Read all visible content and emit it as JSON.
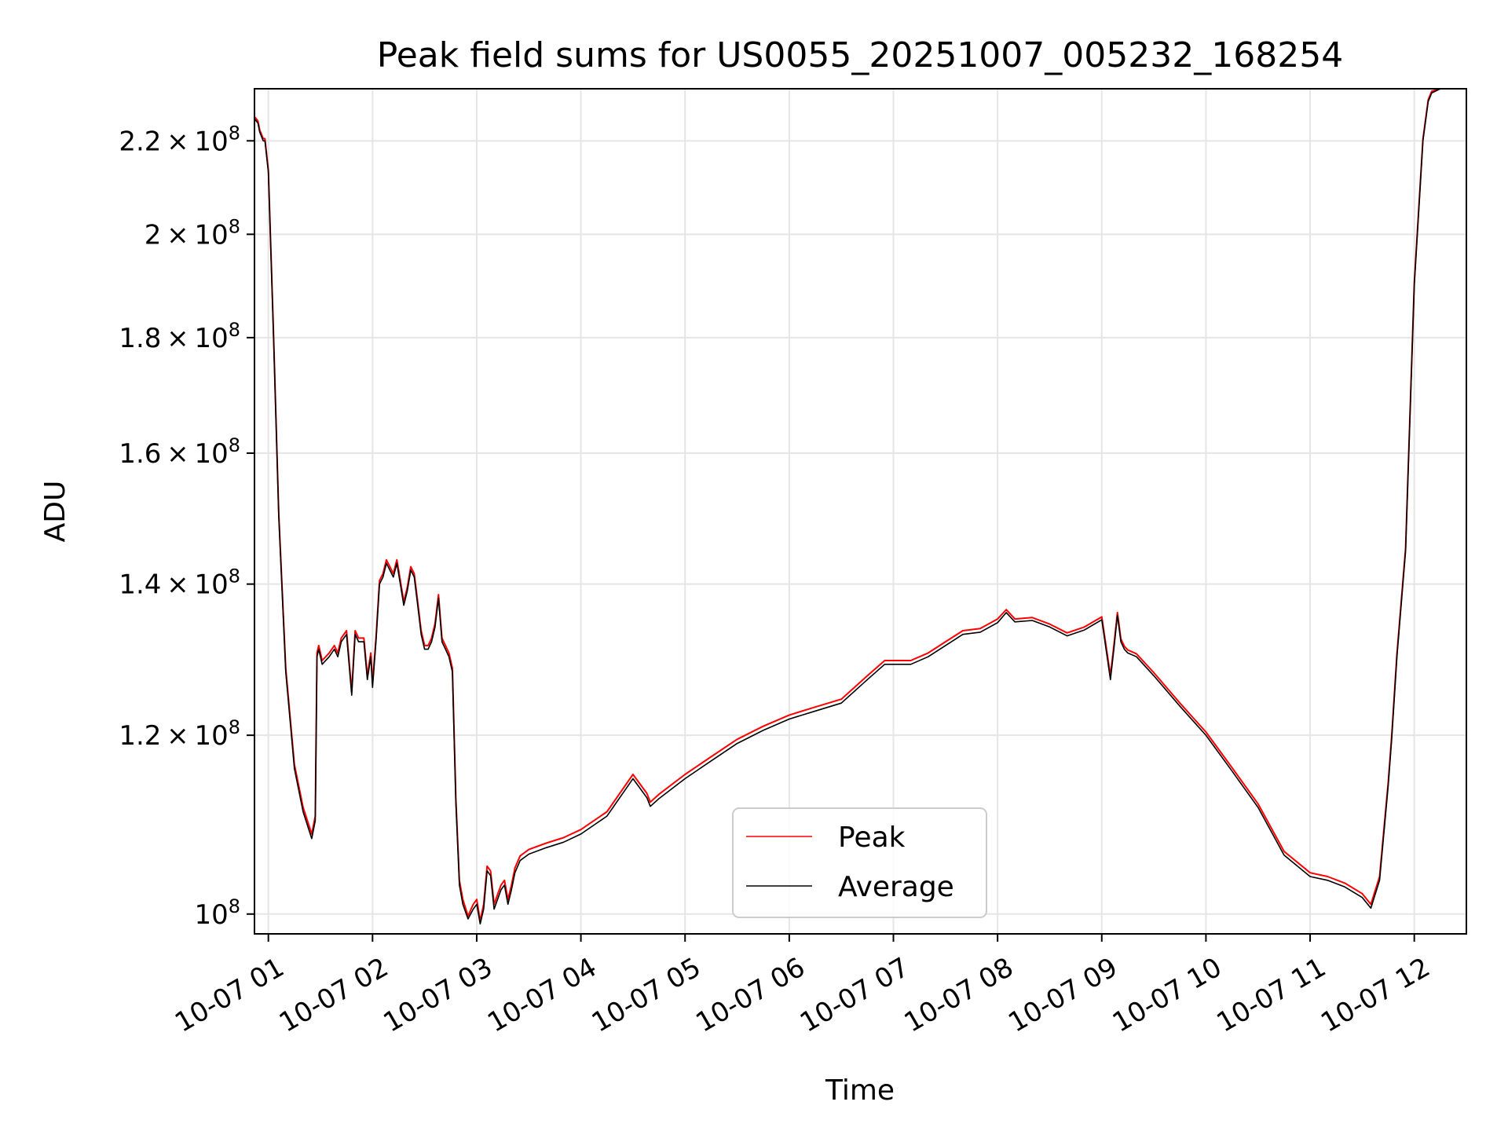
{
  "chart_data": {
    "type": "line",
    "title": "Peak field sums for US0055_20251007_005232_168254",
    "xlabel": "Time",
    "ylabel": "ADU",
    "x_tick_labels": [
      "10-07 01",
      "10-07 02",
      "10-07 03",
      "10-07 04",
      "10-07 05",
      "10-07 06",
      "10-07 07",
      "10-07 08",
      "10-07 09",
      "10-07 10",
      "10-07 11",
      "10-07 12"
    ],
    "x_ticks": [
      "2025-10-07 01:00",
      "2025-10-07 02:00",
      "2025-10-07 03:00",
      "2025-10-07 04:00",
      "2025-10-07 05:00",
      "2025-10-07 06:00",
      "2025-10-07 07:00",
      "2025-10-07 08:00",
      "2025-10-07 09:00",
      "2025-10-07 10:00",
      "2025-10-07 11:00",
      "2025-10-07 12:00"
    ],
    "xlim": [
      "2025-10-07 00:52",
      "2025-10-07 12:30"
    ],
    "y_scale": "log",
    "ylim": [
      98000000,
      232000000
    ],
    "y_ticks": [
      100000000,
      120000000,
      140000000,
      160000000,
      180000000,
      200000000,
      220000000
    ],
    "y_tick_labels": [
      {
        "mantissa": "",
        "base": "10",
        "exp": "8"
      },
      {
        "mantissa": "1.2",
        "base": "10",
        "exp": "8"
      },
      {
        "mantissa": "1.4",
        "base": "10",
        "exp": "8"
      },
      {
        "mantissa": "1.6",
        "base": "10",
        "exp": "8"
      },
      {
        "mantissa": "1.8",
        "base": "10",
        "exp": "8"
      },
      {
        "mantissa": "2",
        "base": "10",
        "exp": "8"
      },
      {
        "mantissa": "2.2",
        "base": "10",
        "exp": "8"
      }
    ],
    "grid": true,
    "legend_position": "lower center",
    "series": [
      {
        "name": "Peak",
        "color": "#ff0000"
      },
      {
        "name": "Average",
        "color": "#000000"
      }
    ],
    "x": [
      "00:52",
      "00:54",
      "00:55",
      "00:57",
      "00:58",
      "01:00",
      "01:03",
      "01:06",
      "01:10",
      "01:15",
      "01:20",
      "01:25",
      "01:27",
      "01:28",
      "01:29",
      "01:31",
      "01:35",
      "01:38",
      "01:40",
      "01:42",
      "01:45",
      "01:48",
      "01:50",
      "01:52",
      "01:55",
      "01:57",
      "01:59",
      "02:00",
      "02:02",
      "02:04",
      "02:06",
      "02:08",
      "02:10",
      "02:12",
      "02:14",
      "02:16",
      "02:18",
      "02:20",
      "02:22",
      "02:24",
      "02:26",
      "02:28",
      "02:30",
      "02:32",
      "02:34",
      "02:36",
      "02:38",
      "02:40",
      "02:42",
      "02:44",
      "02:46",
      "02:48",
      "02:50",
      "02:52",
      "02:55",
      "02:58",
      "03:00",
      "03:02",
      "03:04",
      "03:06",
      "03:08",
      "03:10",
      "03:12",
      "03:14",
      "03:16",
      "03:18",
      "03:20",
      "03:22",
      "03:25",
      "03:30",
      "03:40",
      "03:50",
      "04:00",
      "04:15",
      "04:30",
      "04:38",
      "04:40",
      "04:45",
      "05:00",
      "05:15",
      "05:30",
      "05:45",
      "06:00",
      "06:15",
      "06:30",
      "06:45",
      "06:55",
      "07:00",
      "07:10",
      "07:20",
      "07:30",
      "07:40",
      "07:50",
      "08:00",
      "08:05",
      "08:10",
      "08:20",
      "08:30",
      "08:40",
      "08:50",
      "09:00",
      "09:05",
      "09:07",
      "09:09",
      "09:11",
      "09:13",
      "09:15",
      "09:20",
      "09:30",
      "09:45",
      "10:00",
      "10:15",
      "10:30",
      "10:45",
      "11:00",
      "11:10",
      "11:20",
      "11:30",
      "11:35",
      "11:40",
      "11:45",
      "11:47",
      "11:50",
      "11:55",
      "12:00",
      "12:05",
      "12:08",
      "12:10",
      "12:15",
      "12:20",
      "12:25",
      "12:30"
    ],
    "average": [
      225000000,
      224000000,
      222000000,
      220000000,
      220000000,
      213000000,
      180000000,
      150000000,
      128000000,
      116000000,
      111000000,
      108000000,
      110000000,
      130000000,
      131000000,
      129000000,
      130000000,
      131000000,
      130000000,
      132000000,
      133000000,
      125000000,
      133000000,
      132000000,
      132000000,
      127000000,
      130000000,
      126000000,
      132000000,
      140000000,
      141000000,
      143000000,
      142000000,
      141000000,
      143000000,
      140000000,
      137000000,
      139000000,
      142000000,
      141000000,
      137000000,
      133000000,
      131000000,
      131000000,
      132000000,
      134000000,
      138000000,
      132000000,
      131000000,
      130000000,
      128000000,
      112000000,
      103000000,
      101000000,
      99500000,
      100500000,
      101000000,
      99000000,
      100500000,
      104500000,
      104000000,
      100500000,
      101500000,
      102500000,
      103000000,
      101000000,
      102500000,
      104300000,
      105600000,
      106300000,
      107000000,
      107600000,
      108500000,
      110500000,
      114800000,
      112600000,
      111600000,
      112500000,
      114800000,
      116900000,
      119000000,
      120600000,
      122000000,
      123000000,
      124000000,
      127000000,
      129000000,
      129000000,
      129000000,
      130000000,
      131500000,
      133000000,
      133300000,
      134600000,
      136000000,
      134700000,
      134900000,
      134000000,
      132800000,
      133600000,
      135000000,
      127000000,
      131000000,
      135600000,
      132000000,
      131000000,
      130500000,
      130000000,
      127500000,
      123600000,
      120000000,
      115700000,
      111500000,
      106200000,
      103900000,
      103500000,
      102800000,
      101700000,
      100600000,
      103500000,
      114000000,
      119500000,
      130000000,
      144800000,
      190000000,
      220000000,
      229000000,
      231000000,
      232000000,
      232000000,
      232000000,
      232000000
    ],
    "peak": [
      225500000,
      224500000,
      222500000,
      220500000,
      220500000,
      213500000,
      180500000,
      150500000,
      128500000,
      116500000,
      111500000,
      108500000,
      110500000,
      130500000,
      131500000,
      129500000,
      130500000,
      131500000,
      130500000,
      132500000,
      133500000,
      125500000,
      133500000,
      132500000,
      132500000,
      127500000,
      130500000,
      126500000,
      132500000,
      140500000,
      141500000,
      143500000,
      142500000,
      141500000,
      143500000,
      140500000,
      137500000,
      139500000,
      142500000,
      141500000,
      137500000,
      133500000,
      131500000,
      131500000,
      132500000,
      134500000,
      138500000,
      132500000,
      131500000,
      130500000,
      128500000,
      112500000,
      103500000,
      101500000,
      99800000,
      101000000,
      101500000,
      99300000,
      101000000,
      105000000,
      104500000,
      101000000,
      102000000,
      103000000,
      103500000,
      101500000,
      103000000,
      104800000,
      106100000,
      106800000,
      107500000,
      108100000,
      109000000,
      111000000,
      115300000,
      113100000,
      112100000,
      113000000,
      115300000,
      117400000,
      119500000,
      121100000,
      122500000,
      123500000,
      124500000,
      127500000,
      129500000,
      129500000,
      129500000,
      130500000,
      132000000,
      133500000,
      133800000,
      135100000,
      136400000,
      135100000,
      135300000,
      134400000,
      133200000,
      134000000,
      135400000,
      127500000,
      131500000,
      136000000,
      132400000,
      131400000,
      130900000,
      130400000,
      127900000,
      124000000,
      120400000,
      116100000,
      111900000,
      106600000,
      104300000,
      103900000,
      103200000,
      102100000,
      101000000,
      103900000,
      114400000,
      119900000,
      130400000,
      145200000,
      190400000,
      220400000,
      229400000,
      231400000,
      232000000,
      232000000,
      232000000,
      232000000
    ]
  }
}
